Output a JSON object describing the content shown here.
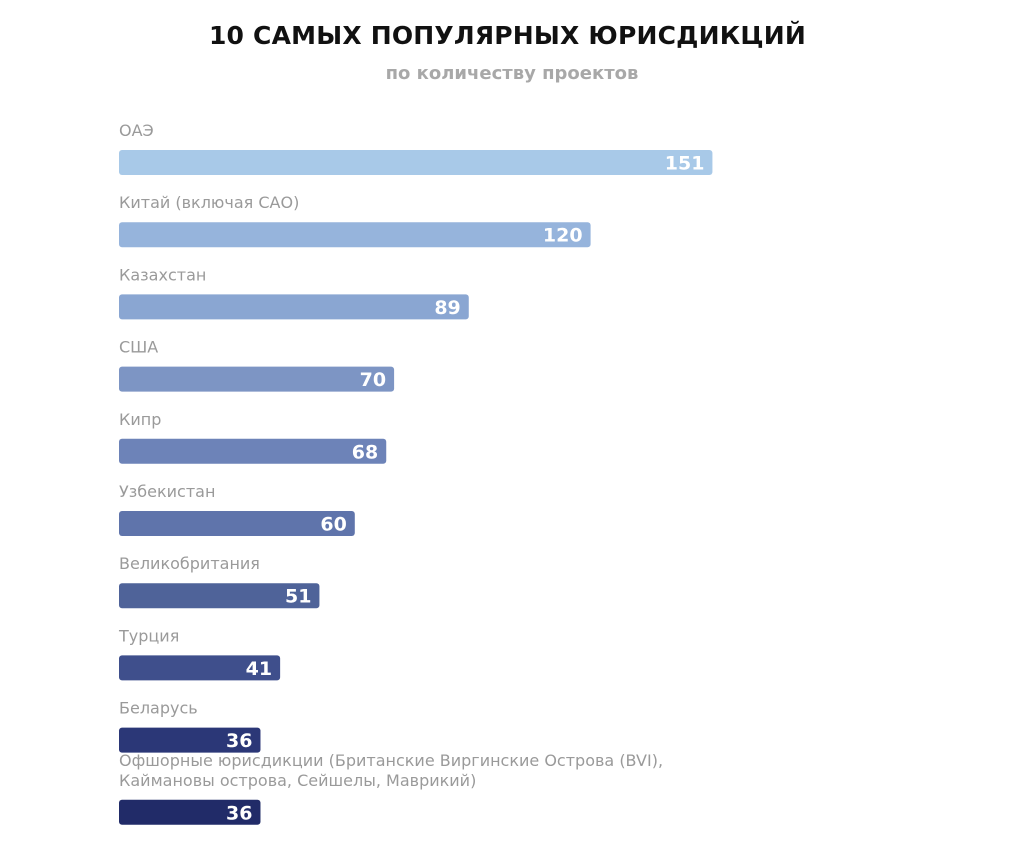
{
  "chart_data": {
    "type": "bar",
    "orientation": "horizontal",
    "title": "10 САМЫХ ПОПУЛЯРНЫХ ЮРИСДИКЦИЙ",
    "subtitle": "по количеству проектов",
    "categories": [
      "ОАЭ",
      "Китай (включая САО)",
      "Казахстан",
      "США",
      "Кипр",
      "Узбекистан",
      "Великобритания",
      "Турция",
      "Беларусь",
      "Офшорные юрисдикции (Британские Виргинские Острова (BVI),\nКаймановы острова, Сейшелы, Маврикий)"
    ],
    "values": [
      151,
      120,
      89,
      70,
      68,
      60,
      51,
      41,
      36,
      36
    ],
    "data_labels": [
      "151",
      "120",
      "89",
      "70",
      "68",
      "60",
      "51",
      "41",
      "36",
      "36"
    ],
    "colors": [
      "#a8c9e8",
      "#96b4dc",
      "#8aa6d2",
      "#7d95c4",
      "#6d83b8",
      "#5f74ab",
      "#4f6399",
      "#3f4f8c",
      "#2b3777",
      "#212b68"
    ],
    "grid": false,
    "legend": "none"
  }
}
